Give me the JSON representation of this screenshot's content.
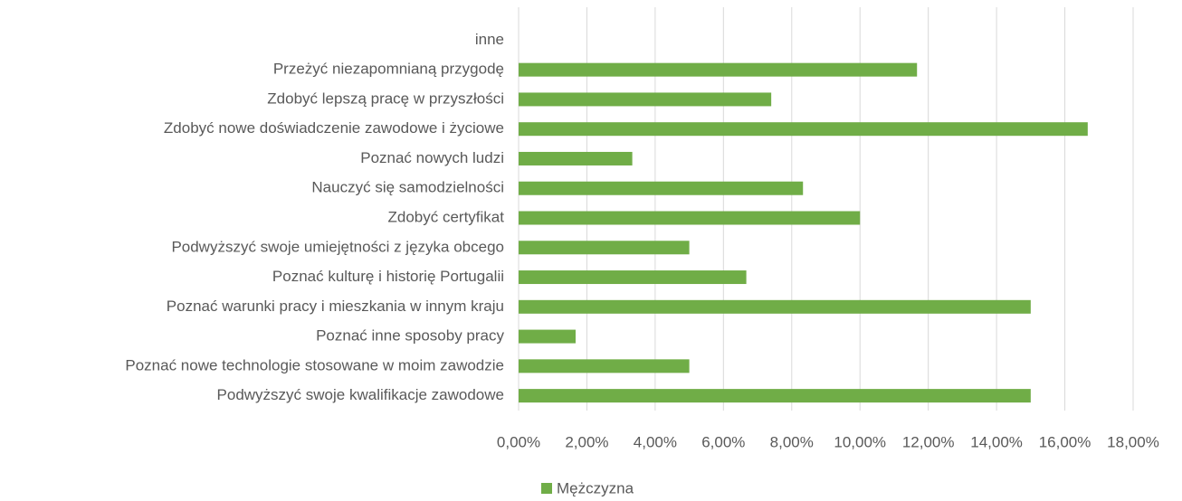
{
  "chart_data": {
    "type": "hbar",
    "categories": [
      "inne",
      "Przeżyć niezapomnianą przygodę",
      "Zdobyć lepszą pracę w przyszłości",
      "Zdobyć nowe doświadczenie zawodowe i życiowe",
      "Poznać nowych ludzi",
      "Nauczyć się samodzielności",
      "Zdobyć certyfikat",
      "Podwyższyć swoje umiejętności z języka obcego",
      "Poznać kulturę i historię Portugalii",
      "Poznać warunki pracy i mieszkania  w innym kraju",
      "Poznać inne sposoby pracy",
      "Poznać nowe technologie stosowane w moim zawodzie",
      "Podwyższyć swoje kwalifikacje zawodowe"
    ],
    "series": [
      {
        "name": "Mężczyzna",
        "color": "#70ad47",
        "values": [
          0,
          11.67,
          7.4,
          16.67,
          3.33,
          8.33,
          10,
          5,
          6.67,
          15,
          1.67,
          5,
          15
        ]
      }
    ],
    "xlim": [
      0,
      18
    ],
    "xticks": [
      {
        "value": 0,
        "label": "0,00%"
      },
      {
        "value": 2,
        "label": "2,00%"
      },
      {
        "value": 4,
        "label": "4,00%"
      },
      {
        "value": 6,
        "label": "6,00%"
      },
      {
        "value": 8,
        "label": "8,00%"
      },
      {
        "value": 10,
        "label": "10,00%"
      },
      {
        "value": 12,
        "label": "12,00%"
      },
      {
        "value": 14,
        "label": "14,00%"
      },
      {
        "value": 16,
        "label": "16,00%"
      },
      {
        "value": 18,
        "label": "18,00%"
      }
    ],
    "grid": true,
    "legend": "bottom"
  }
}
